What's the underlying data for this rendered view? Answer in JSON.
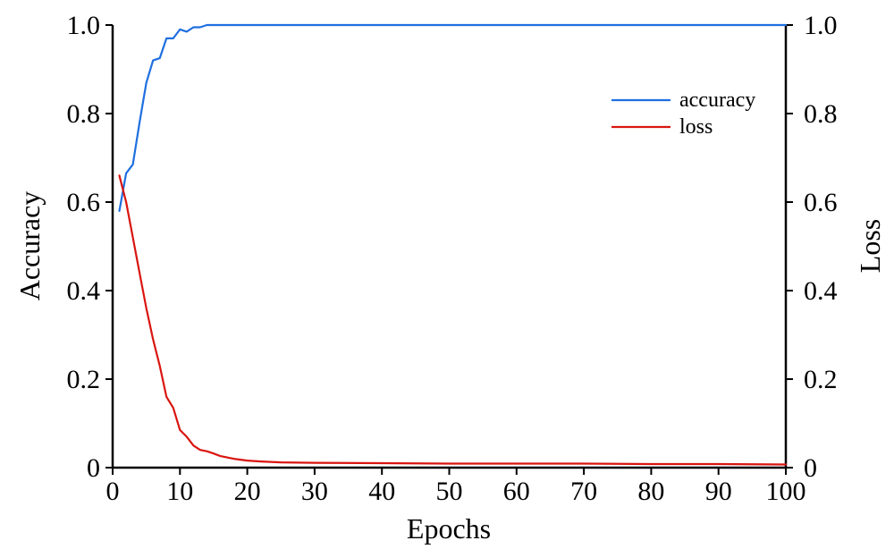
{
  "chart_data": {
    "type": "line",
    "title": "",
    "xlabel": "Epochs",
    "ylabel_left": "Accuracy",
    "ylabel_right": "Loss",
    "xlim": [
      0,
      100
    ],
    "ylim_left": [
      0,
      1
    ],
    "ylim_right": [
      0,
      1
    ],
    "x_ticks": [
      0,
      10,
      20,
      30,
      40,
      50,
      60,
      70,
      80,
      90,
      100
    ],
    "x_tick_labels": [
      "0",
      "10",
      "20",
      "30",
      "40",
      "50",
      "60",
      "70",
      "80",
      "90",
      "100"
    ],
    "y_ticks": [
      0,
      0.2,
      0.4,
      0.6,
      0.8,
      1.0
    ],
    "y_tick_labels": [
      "0",
      "0.2",
      "0.4",
      "0.6",
      "0.8",
      "1.0"
    ],
    "grid": false,
    "legend_position": "top-right",
    "series": [
      {
        "name": "accuracy",
        "axis": "left",
        "color": "#1f6fe0",
        "x": [
          1,
          2,
          3,
          4,
          5,
          6,
          7,
          8,
          9,
          10,
          11,
          12,
          13,
          14,
          15,
          20,
          30,
          40,
          50,
          60,
          70,
          80,
          90,
          100
        ],
        "y": [
          0.58,
          0.665,
          0.685,
          0.78,
          0.87,
          0.92,
          0.925,
          0.97,
          0.97,
          0.99,
          0.985,
          0.995,
          0.995,
          1.0,
          1.0,
          1.0,
          1.0,
          1.0,
          1.0,
          1.0,
          1.0,
          1.0,
          1.0,
          1.0
        ]
      },
      {
        "name": "loss",
        "axis": "right",
        "color": "#d9150f",
        "x": [
          1,
          2,
          3,
          4,
          5,
          6,
          7,
          8,
          9,
          10,
          11,
          12,
          13,
          14,
          15,
          16,
          18,
          20,
          22,
          25,
          30,
          40,
          50,
          60,
          70,
          80,
          90,
          100
        ],
        "y": [
          0.66,
          0.6,
          0.52,
          0.44,
          0.36,
          0.29,
          0.23,
          0.16,
          0.135,
          0.085,
          0.07,
          0.05,
          0.04,
          0.037,
          0.032,
          0.026,
          0.02,
          0.016,
          0.014,
          0.012,
          0.011,
          0.01,
          0.009,
          0.009,
          0.009,
          0.008,
          0.008,
          0.007
        ]
      }
    ]
  }
}
